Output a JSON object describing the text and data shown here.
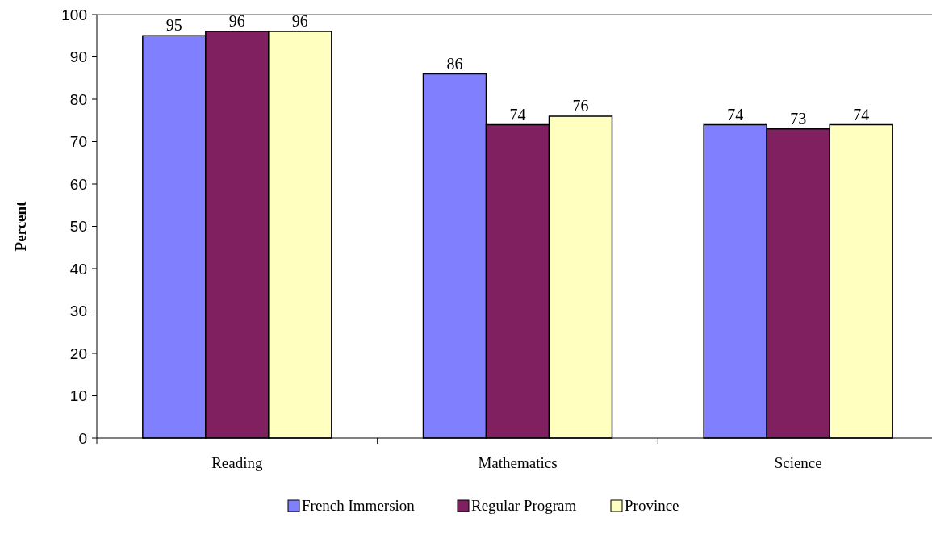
{
  "chart_data": {
    "type": "bar",
    "ylabel": "Percent",
    "categories": [
      "Reading",
      "Mathematics",
      "Science"
    ],
    "series": [
      {
        "name": "French Immersion",
        "color": "#8080ff",
        "values": [
          95,
          86,
          74
        ]
      },
      {
        "name": "Regular Program",
        "color": "#802060",
        "values": [
          96,
          74,
          73
        ]
      },
      {
        "name": "Province",
        "color": "#ffffc0",
        "values": [
          96,
          76,
          74
        ]
      }
    ],
    "ylim": [
      0,
      100
    ],
    "yticks": [
      0,
      10,
      20,
      30,
      40,
      50,
      60,
      70,
      80,
      90,
      100
    ],
    "data_labels": true,
    "legend": "bottom",
    "grid": false
  }
}
